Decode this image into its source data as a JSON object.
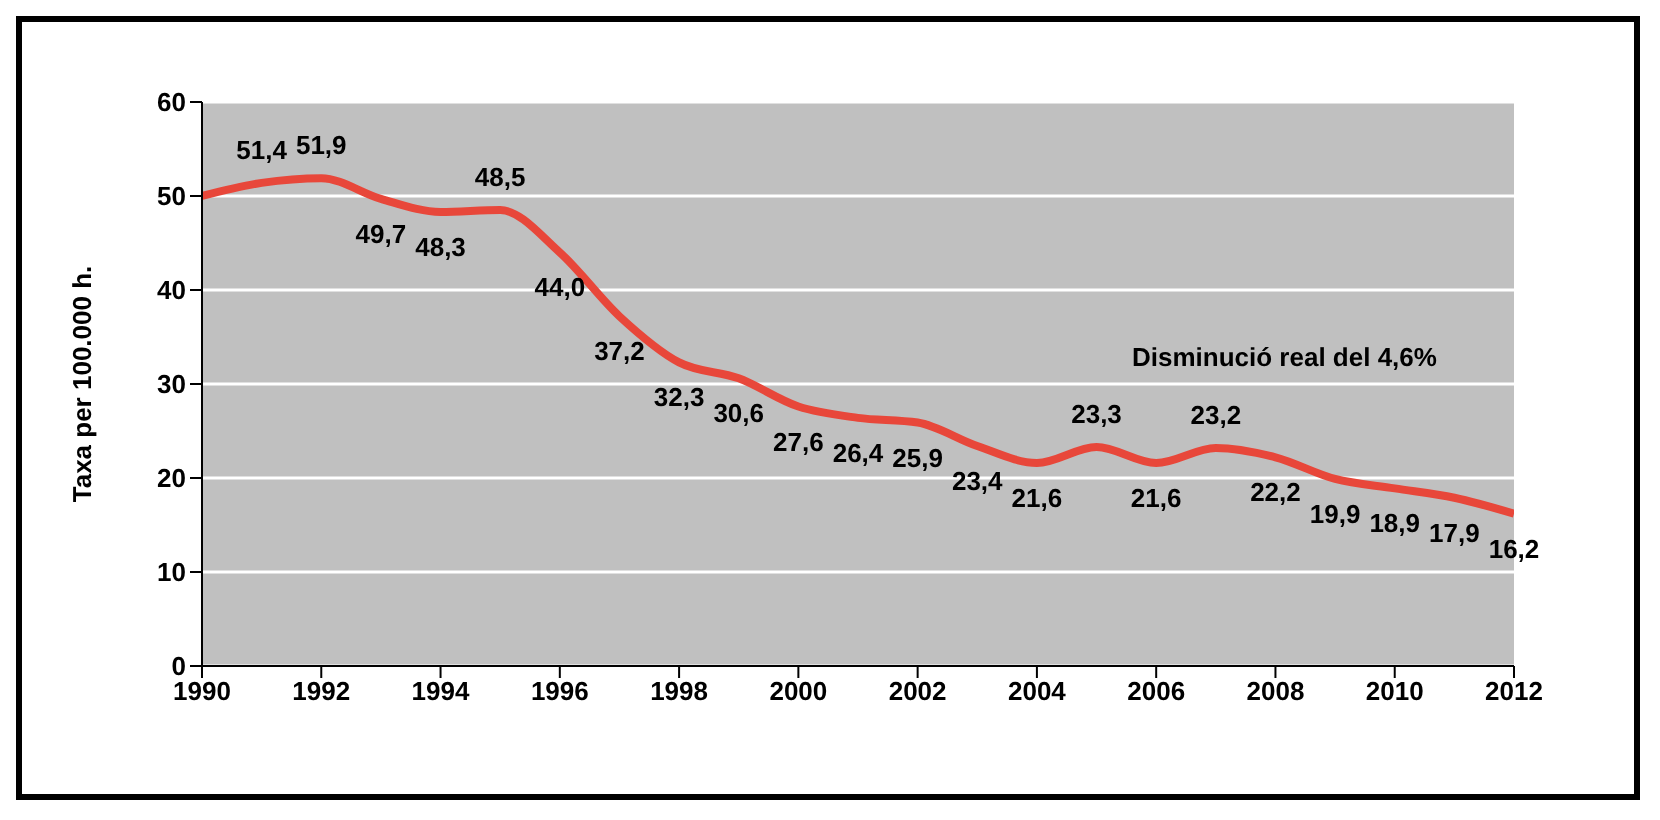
{
  "chart_data": {
    "type": "line",
    "ylabel": "Taxa per 100.000 h.",
    "x": [
      1990,
      1991,
      1992,
      1993,
      1994,
      1995,
      1996,
      1997,
      1998,
      1999,
      2000,
      2001,
      2002,
      2003,
      2004,
      2005,
      2006,
      2007,
      2008,
      2009,
      2010,
      2011,
      2012
    ],
    "series": [
      {
        "color": "#e8473a",
        "values": [
          50,
          51.4,
          51.9,
          49.7,
          48.3,
          48.5,
          44.0,
          37.2,
          32.3,
          30.6,
          27.6,
          26.4,
          25.9,
          23.4,
          21.6,
          23.3,
          21.6,
          23.2,
          22.2,
          19.9,
          18.9,
          17.9,
          16.2
        ],
        "value_labels": [
          null,
          "51,4",
          "51,9",
          "49,7",
          "48,3",
          "48,5",
          "44,0",
          "37,2",
          "32,3",
          "30,6",
          "27,6",
          "26,4",
          "25,9",
          "23,4",
          "21,6",
          "23,3",
          "21,6",
          "23,2",
          "22,2",
          "19,9",
          "18,9",
          "17,9",
          "16,2"
        ]
      }
    ],
    "xlim": [
      1990,
      2012
    ],
    "xticks": [
      1990,
      1992,
      1994,
      1996,
      1998,
      2000,
      2002,
      2004,
      2006,
      2008,
      2010,
      2012
    ],
    "ylim": [
      0,
      60
    ],
    "yticks": [
      0,
      10,
      20,
      30,
      40,
      50,
      60
    ],
    "grid": "y",
    "annotations": [
      "Disminució real del 4,6%"
    ]
  }
}
